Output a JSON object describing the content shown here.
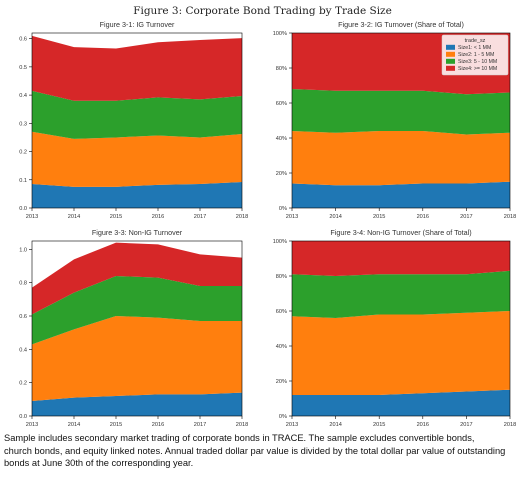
{
  "figure_title": "Figure 3: Corporate Bond Trading by Trade Size",
  "caption": [
    "Sample includes secondary market trading of corporate bonds in TRACE. The sample excludes convertible bonds,",
    "church bonds, and equity linked notes. Annual traded dollar par value is divided by the total dollar par value of outstanding",
    "bonds at June 30th of the corresponding year."
  ],
  "colors": {
    "series": [
      "#1f77b4",
      "#ff7f0e",
      "#2ca02c",
      "#d62728"
    ]
  },
  "legend": {
    "title": "trade_sz",
    "labels": [
      "Size1: < 1 MM",
      "Size2: 1 - 5 MM",
      "Size3: 5 - 10 MM",
      "Size4: >= 10 MM"
    ]
  },
  "chart_data": [
    {
      "type": "area",
      "stacked": true,
      "title": "Figure 3-1: IG Turnover",
      "xlabel": "",
      "ylabel": "",
      "x": [
        2013,
        2014,
        2015,
        2016,
        2017,
        2018
      ],
      "ylim": [
        0,
        0.62
      ],
      "yticks": [
        0.0,
        0.1,
        0.2,
        0.3,
        0.4,
        0.5,
        0.6
      ],
      "ytick_labels": [
        "0.0",
        "0.1",
        "0.2",
        "0.3",
        "0.4",
        "0.5",
        "0.6"
      ],
      "series": [
        {
          "name": "Size1: < 1 MM",
          "values": [
            0.085,
            0.075,
            0.075,
            0.082,
            0.085,
            0.092
          ]
        },
        {
          "name": "Size2: 1 - 5 MM",
          "values": [
            0.185,
            0.17,
            0.175,
            0.175,
            0.165,
            0.17
          ]
        },
        {
          "name": "Size3: 5 - 10 MM",
          "values": [
            0.145,
            0.135,
            0.13,
            0.135,
            0.135,
            0.135
          ]
        },
        {
          "name": "Size4: >= 10 MM",
          "values": [
            0.195,
            0.19,
            0.185,
            0.195,
            0.21,
            0.205
          ]
        }
      ],
      "legend": false
    },
    {
      "type": "area",
      "stacked": true,
      "title": "Figure 3-2: IG Turnover (Share of Total)",
      "xlabel": "",
      "ylabel": "",
      "x": [
        2013,
        2014,
        2015,
        2016,
        2017,
        2018
      ],
      "ylim": [
        0,
        1.0
      ],
      "yticks": [
        0.0,
        0.2,
        0.4,
        0.6,
        0.8,
        1.0
      ],
      "ytick_labels": [
        "0%",
        "20%",
        "40%",
        "60%",
        "80%",
        "100%"
      ],
      "series": [
        {
          "name": "Size1: < 1 MM",
          "values": [
            0.14,
            0.13,
            0.13,
            0.14,
            0.14,
            0.15
          ]
        },
        {
          "name": "Size2: 1 - 5 MM",
          "values": [
            0.3,
            0.3,
            0.31,
            0.3,
            0.28,
            0.28
          ]
        },
        {
          "name": "Size3: 5 - 10 MM",
          "values": [
            0.24,
            0.24,
            0.23,
            0.23,
            0.23,
            0.23
          ]
        },
        {
          "name": "Size4: >= 10 MM",
          "values": [
            0.32,
            0.33,
            0.33,
            0.33,
            0.35,
            0.34
          ]
        }
      ],
      "legend": true,
      "legend_placement": "top-right"
    },
    {
      "type": "area",
      "stacked": true,
      "title": "Figure 3-3: Non-IG Turnover",
      "xlabel": "",
      "ylabel": "",
      "x": [
        2013,
        2014,
        2015,
        2016,
        2017,
        2018
      ],
      "ylim": [
        0,
        1.05
      ],
      "yticks": [
        0.0,
        0.2,
        0.4,
        0.6,
        0.8,
        1.0
      ],
      "ytick_labels": [
        "0.0",
        "0.2",
        "0.4",
        "0.6",
        "0.8",
        "1.0"
      ],
      "series": [
        {
          "name": "Size1: < 1 MM",
          "values": [
            0.09,
            0.11,
            0.12,
            0.13,
            0.13,
            0.14
          ]
        },
        {
          "name": "Size2: 1 - 5 MM",
          "values": [
            0.34,
            0.41,
            0.48,
            0.46,
            0.44,
            0.43
          ]
        },
        {
          "name": "Size3: 5 - 10 MM",
          "values": [
            0.18,
            0.22,
            0.24,
            0.24,
            0.21,
            0.21
          ]
        },
        {
          "name": "Size4: >= 10 MM",
          "values": [
            0.16,
            0.2,
            0.2,
            0.2,
            0.19,
            0.17
          ]
        }
      ],
      "legend": false
    },
    {
      "type": "area",
      "stacked": true,
      "title": "Figure 3-4: Non-IG Turnover (Share of Total)",
      "xlabel": "",
      "ylabel": "",
      "x": [
        2013,
        2014,
        2015,
        2016,
        2017,
        2018
      ],
      "ylim": [
        0,
        1.0
      ],
      "yticks": [
        0.0,
        0.2,
        0.4,
        0.6,
        0.8,
        1.0
      ],
      "ytick_labels": [
        "0%",
        "20%",
        "40%",
        "60%",
        "80%",
        "100%"
      ],
      "series": [
        {
          "name": "Size1: < 1 MM",
          "values": [
            0.12,
            0.12,
            0.12,
            0.13,
            0.14,
            0.15
          ]
        },
        {
          "name": "Size2: 1 - 5 MM",
          "values": [
            0.45,
            0.44,
            0.46,
            0.45,
            0.45,
            0.45
          ]
        },
        {
          "name": "Size3: 5 - 10 MM",
          "values": [
            0.24,
            0.24,
            0.23,
            0.23,
            0.22,
            0.23
          ]
        },
        {
          "name": "Size4: >= 10 MM",
          "values": [
            0.19,
            0.2,
            0.19,
            0.19,
            0.19,
            0.17
          ]
        }
      ],
      "legend": false
    }
  ]
}
